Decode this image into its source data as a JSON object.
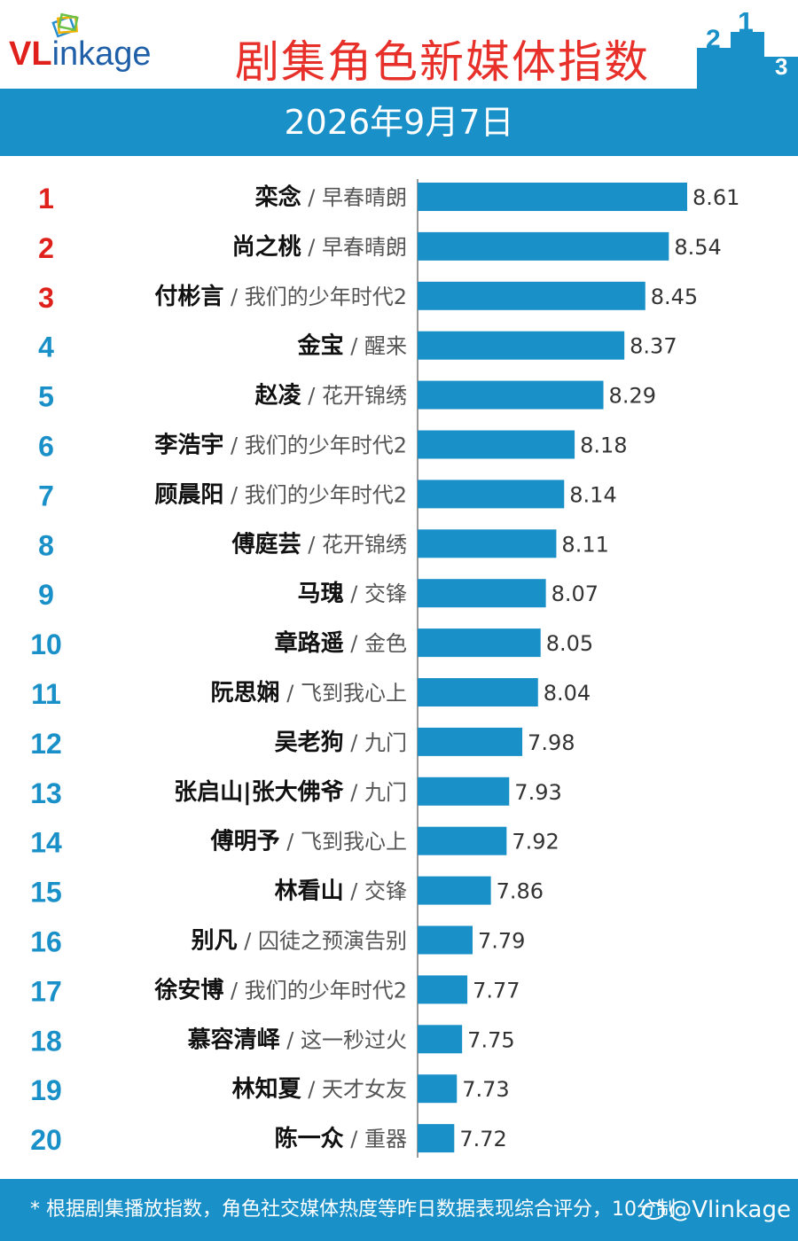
{
  "header": {
    "logo_v": "VL",
    "logo_rest": "inkage",
    "title": "剧集角色新媒体指数",
    "podium": [
      "2",
      "1",
      "3"
    ]
  },
  "date": "2026年9月7日",
  "footer": {
    "note": "* 根据剧集播放指数，角色社交媒体热度等昨日数据表现综合评分，10分制",
    "watermark": "@Vlinkage"
  },
  "colors": {
    "bar": "#1a90c8",
    "top_rank": "#e0201b",
    "rank": "#1a90c8",
    "title": "#e8302a"
  },
  "chart_data": {
    "type": "bar",
    "orientation": "horizontal",
    "title": "剧集角色新媒体指数",
    "xlabel": "",
    "ylabel": "",
    "grid": false,
    "items": [
      {
        "rank": "1",
        "name": "栾念",
        "show": "早春晴朗",
        "value": 8.61
      },
      {
        "rank": "2",
        "name": "尚之桃",
        "show": "早春晴朗",
        "value": 8.54
      },
      {
        "rank": "3",
        "name": "付彬言",
        "show": "我们的少年时代2",
        "value": 8.45
      },
      {
        "rank": "4",
        "name": "金宝",
        "show": "醒来",
        "value": 8.37
      },
      {
        "rank": "5",
        "name": "赵凌",
        "show": "花开锦绣",
        "value": 8.29
      },
      {
        "rank": "6",
        "name": "李浩宇",
        "show": "我们的少年时代2",
        "value": 8.18
      },
      {
        "rank": "7",
        "name": "顾晨阳",
        "show": "我们的少年时代2",
        "value": 8.14
      },
      {
        "rank": "8",
        "name": "傅庭芸",
        "show": "花开锦绣",
        "value": 8.11
      },
      {
        "rank": "9",
        "name": "马瑰",
        "show": "交锋",
        "value": 8.07
      },
      {
        "rank": "10",
        "name": "章路遥",
        "show": "金色",
        "value": 8.05
      },
      {
        "rank": "11",
        "name": "阮思娴",
        "show": "飞到我心上",
        "value": 8.04
      },
      {
        "rank": "12",
        "name": "吴老狗",
        "show": "九门",
        "value": 7.98
      },
      {
        "rank": "13",
        "name": "张启山|张大佛爷",
        "show": "九门",
        "value": 7.93
      },
      {
        "rank": "14",
        "name": "傅明予",
        "show": "飞到我心上",
        "value": 7.92
      },
      {
        "rank": "15",
        "name": "林看山",
        "show": "交锋",
        "value": 7.86
      },
      {
        "rank": "16",
        "name": "别凡",
        "show": "囚徒之预演告别",
        "value": 7.79
      },
      {
        "rank": "17",
        "name": "徐安博",
        "show": "我们的少年时代2",
        "value": 7.77
      },
      {
        "rank": "18",
        "name": "慕容清峄",
        "show": "这一秒过火",
        "value": 7.75
      },
      {
        "rank": "19",
        "name": "林知夏",
        "show": "天才女友",
        "value": 7.73
      },
      {
        "rank": "20",
        "name": "陈一众",
        "show": "重器",
        "value": 7.72
      }
    ]
  }
}
